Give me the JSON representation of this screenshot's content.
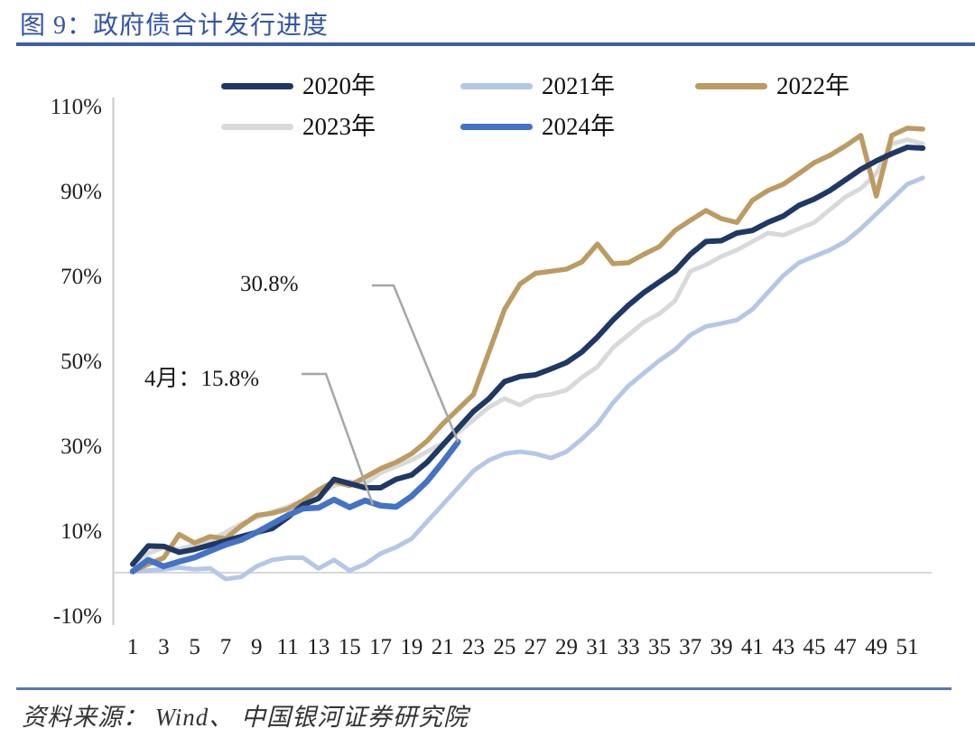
{
  "figure": {
    "title": "图 9：政府债合计发行进度",
    "source": "资料来源： Wind、 中国银河证券研究院"
  },
  "colors": {
    "title_blue": "#3454A4",
    "title_rule_blue": "#3D5DA9",
    "footer_rule_blue": "#5878B0",
    "axis_gray": "#C8C8C8",
    "zero_line_gray": "#D8D8D8",
    "annotation_leader_gray": "#A6A6A6",
    "axis_text": "#1f1f1f"
  },
  "chart_data": {
    "type": "line",
    "title": "政府债合计发行进度",
    "xlabel": "",
    "ylabel": "",
    "x_unit": "周 (week of year)",
    "y_unit": "percent",
    "ylim": [
      -10,
      110
    ],
    "xlim": [
      1,
      52
    ],
    "grid": "horizontal zero line only",
    "legend_position": "top",
    "x_tick_labels": [
      1,
      3,
      5,
      7,
      9,
      11,
      13,
      15,
      17,
      19,
      21,
      23,
      25,
      27,
      29,
      31,
      33,
      35,
      37,
      39,
      41,
      43,
      45,
      47,
      49,
      51
    ],
    "y_tick_labels": [
      "110%",
      "90%",
      "70%",
      "50%",
      "30%",
      "10%",
      "-10%"
    ],
    "y_tick_values": [
      110,
      90,
      70,
      50,
      30,
      10,
      -10
    ],
    "x": [
      1,
      2,
      3,
      4,
      5,
      6,
      7,
      8,
      9,
      10,
      11,
      12,
      13,
      14,
      15,
      16,
      17,
      18,
      19,
      20,
      21,
      22,
      23,
      24,
      25,
      26,
      27,
      28,
      29,
      30,
      31,
      32,
      33,
      34,
      35,
      36,
      37,
      38,
      39,
      40,
      41,
      42,
      43,
      44,
      45,
      46,
      47,
      48,
      49,
      50,
      51,
      52
    ],
    "series": [
      {
        "name": "2020年",
        "color": "#1F3864",
        "values": [
          2.0,
          6.3,
          6.2,
          4.8,
          5.5,
          6.5,
          7.5,
          8.5,
          9.5,
          10.4,
          13.0,
          16.0,
          17.5,
          22.0,
          21.0,
          20.0,
          20.0,
          22.0,
          23.0,
          26.0,
          30.0,
          34.0,
          38.0,
          41.0,
          45.0,
          46.2,
          46.6,
          48.0,
          49.5,
          52.0,
          55.5,
          59.5,
          63.0,
          66.0,
          68.5,
          71.0,
          75.0,
          78.0,
          78.2,
          80.0,
          80.6,
          82.5,
          84.0,
          86.5,
          88.0,
          90.0,
          92.5,
          95.0,
          97.0,
          98.7,
          100.2,
          100.0
        ]
      },
      {
        "name": "2021年",
        "color": "#B4C7E7",
        "values": [
          0.2,
          0.5,
          0.8,
          1.2,
          0.8,
          1.0,
          -1.5,
          -1.0,
          1.5,
          3.0,
          3.5,
          3.5,
          1.0,
          3.0,
          0.5,
          2.0,
          4.5,
          6.0,
          8.0,
          12.0,
          16.0,
          20.0,
          24.0,
          26.5,
          28.0,
          28.5,
          28.0,
          27.0,
          28.5,
          31.5,
          35.0,
          40.0,
          44.0,
          47.0,
          50.0,
          52.5,
          56.0,
          58.0,
          58.7,
          59.5,
          62.0,
          66.0,
          70.0,
          73.0,
          74.5,
          76.0,
          78.0,
          81.0,
          84.5,
          88.0,
          91.5,
          93.0
        ]
      },
      {
        "name": "2022年",
        "color": "#BC9B63",
        "values": [
          0.3,
          2.0,
          3.5,
          9.0,
          7.0,
          8.5,
          8.0,
          11.0,
          13.5,
          14.0,
          15.0,
          17.0,
          19.5,
          21.5,
          20.5,
          22.5,
          24.5,
          26.0,
          28.0,
          31.0,
          35.0,
          38.5,
          42.0,
          52.0,
          62.0,
          68.0,
          70.5,
          71.0,
          71.5,
          73.2,
          77.4,
          72.8,
          73.0,
          75.0,
          76.8,
          80.6,
          83.0,
          85.3,
          83.4,
          82.5,
          87.7,
          90.0,
          91.5,
          94.0,
          96.6,
          98.3,
          100.5,
          103.0,
          88.7,
          103.0,
          104.7,
          104.5
        ]
      },
      {
        "name": "2023年",
        "color": "#D9D9D9",
        "values": [
          0.5,
          4.5,
          6.0,
          5.5,
          6.5,
          7.5,
          9.5,
          11.5,
          13.0,
          14.3,
          15.5,
          17.0,
          18.5,
          20.5,
          21.5,
          21.0,
          23.5,
          25.0,
          26.5,
          28.5,
          30.5,
          33.0,
          36.0,
          39.0,
          41.0,
          39.5,
          41.5,
          42.0,
          43.0,
          46.0,
          48.5,
          53.0,
          56.0,
          59.0,
          61.0,
          64.0,
          71.0,
          72.5,
          74.5,
          76.0,
          78.0,
          80.0,
          79.5,
          81.0,
          82.5,
          85.5,
          88.5,
          90.5,
          94.0,
          101.0,
          102.0,
          101.0
        ]
      },
      {
        "name": "2024年",
        "color": "#4472C4",
        "values": [
          0.3,
          3.0,
          1.5,
          2.6,
          3.6,
          5.1,
          6.6,
          7.7,
          9.5,
          11.5,
          13.5,
          15.1,
          15.3,
          17.2,
          15.4,
          17.0,
          15.8,
          15.5,
          18.0,
          21.5,
          26.0,
          30.8
        ]
      }
    ],
    "annotations": [
      {
        "text": "30.8%",
        "target_week": 22,
        "target_value": 30.8
      },
      {
        "text": "4月：15.8%",
        "target_week": 16.5,
        "target_value": 16.0
      }
    ]
  }
}
